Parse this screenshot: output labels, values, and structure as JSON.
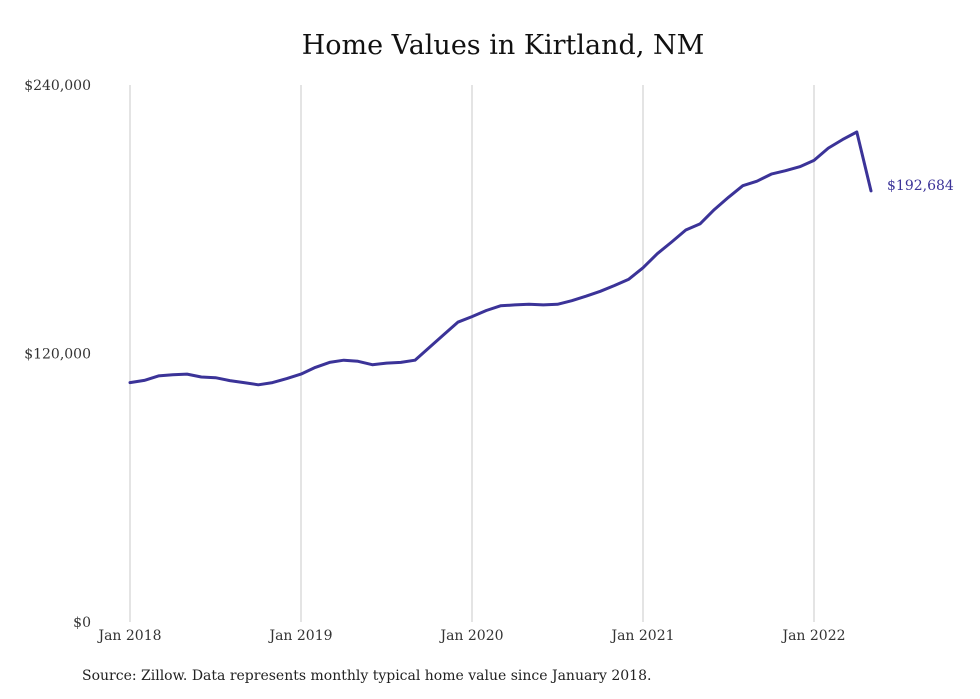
{
  "chart_data": {
    "type": "line",
    "title": "Home Values in Kirtland, NM",
    "xlabel": "",
    "ylabel": "",
    "ylim": [
      0,
      240000
    ],
    "y_ticks": [
      "$0",
      "$120,000",
      "$240,000"
    ],
    "x_ticks": [
      "Jan 2018",
      "Jan 2019",
      "Jan 2020",
      "Jan 2021",
      "Jan 2022"
    ],
    "grid": "vertical",
    "line_color": "#3b3398",
    "end_label": "$192,684",
    "series": [
      {
        "x": [
          "2018-01",
          "2018-02",
          "2018-03",
          "2018-04",
          "2018-05",
          "2018-06",
          "2018-07",
          "2018-08",
          "2018-09",
          "2018-10",
          "2018-11",
          "2018-12",
          "2019-01",
          "2019-02",
          "2019-03",
          "2019-04",
          "2019-05",
          "2019-06",
          "2019-07",
          "2019-08",
          "2019-09",
          "2019-10",
          "2019-11",
          "2019-12",
          "2020-01",
          "2020-02",
          "2020-03",
          "2020-04",
          "2020-05",
          "2020-06",
          "2020-07",
          "2020-08",
          "2020-09",
          "2020-10",
          "2020-11",
          "2020-12",
          "2021-01",
          "2021-02",
          "2021-03",
          "2021-04",
          "2021-05",
          "2021-06",
          "2021-07",
          "2021-08",
          "2021-09",
          "2021-10",
          "2021-11",
          "2021-12",
          "2022-01",
          "2022-02",
          "2022-03",
          "2022-04",
          "2022-05"
        ],
        "values": [
          107000,
          108000,
          110000,
          110500,
          110800,
          109500,
          109200,
          107900,
          107000,
          106000,
          107000,
          108800,
          110800,
          113800,
          116000,
          117000,
          116500,
          115000,
          115700,
          116000,
          117000,
          122700,
          128300,
          134000,
          136500,
          139200,
          141300,
          141700,
          142000,
          141700,
          142000,
          143600,
          145600,
          147800,
          150400,
          153200,
          158300,
          164600,
          169800,
          175200,
          177900,
          184300,
          189800,
          195000,
          197000,
          200200,
          201700,
          203500,
          206300,
          211800,
          215600,
          219000,
          192684
        ]
      }
    ]
  },
  "source_note": "Source: Zillow. Data represents monthly typical home value since January 2018."
}
